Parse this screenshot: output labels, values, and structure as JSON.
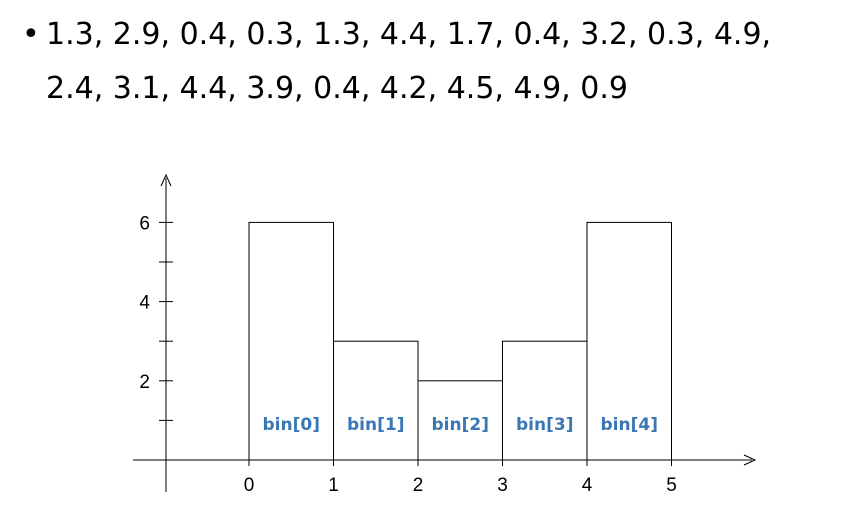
{
  "bullet": {
    "marker": "•",
    "text": "1.3, 2.9, 0.4, 0.3, 1.3, 4.4, 1.7, 0.4, 3.2, 0.3, 4.9, 2.4, 3.1, 4.4, 3.9, 0.4, 4.2, 4.5, 4.9, 0.9"
  },
  "chart_data": {
    "type": "bar",
    "title": "",
    "xlabel": "",
    "ylabel": "",
    "bin_edges": [
      0,
      1,
      2,
      3,
      4,
      5
    ],
    "values": [
      6,
      3,
      2,
      3,
      6
    ],
    "categories": [
      "bin[0]",
      "bin[1]",
      "bin[2]",
      "bin[3]",
      "bin[4]"
    ],
    "x_ticks": [
      "0",
      "1",
      "2",
      "3",
      "4",
      "5"
    ],
    "y_ticks": [
      {
        "value": 1,
        "label": ""
      },
      {
        "value": 2,
        "label": "2"
      },
      {
        "value": 3,
        "label": ""
      },
      {
        "value": 4,
        "label": "4"
      },
      {
        "value": 5,
        "label": ""
      },
      {
        "value": 6,
        "label": "6"
      }
    ],
    "xlim": [
      -1,
      5
    ],
    "ylim": [
      0,
      7
    ],
    "grid": false,
    "colors": {
      "bar_fill": "#ffffff",
      "bar_stroke": "#000000",
      "bin_label": "#3a78b5"
    }
  }
}
